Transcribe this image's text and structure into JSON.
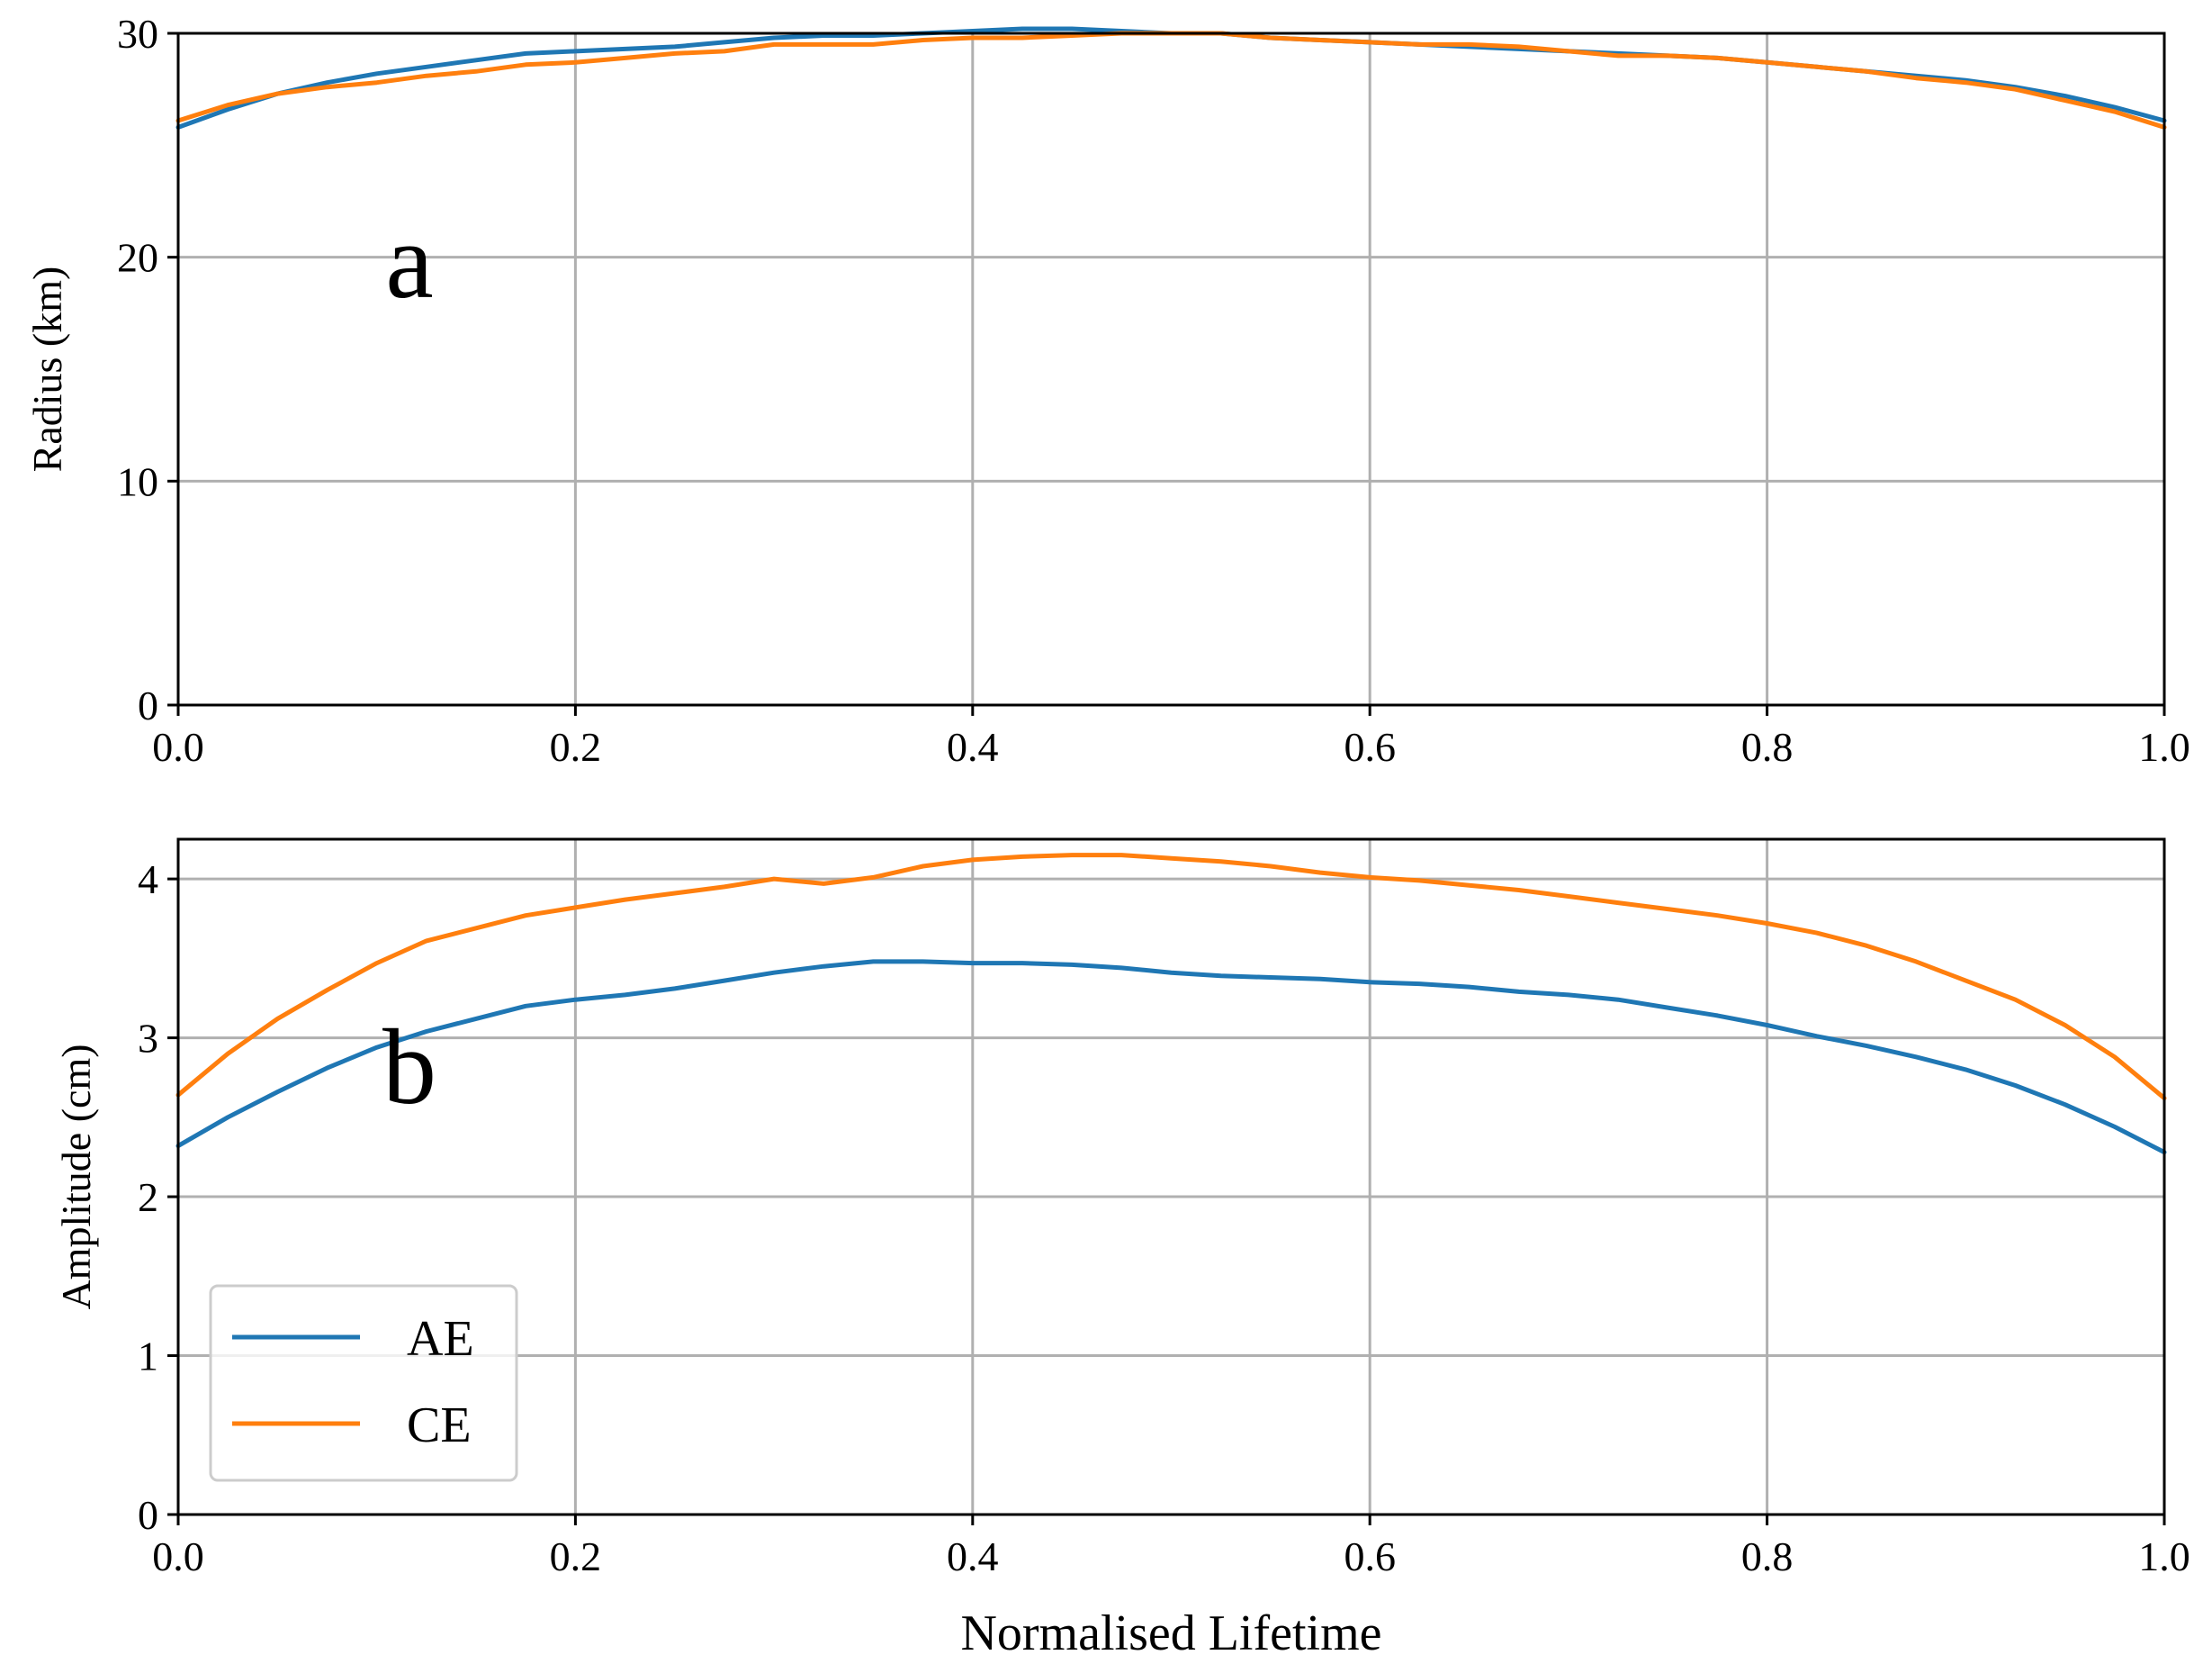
{
  "chart_data": [
    {
      "type": "line",
      "panel_label": "a",
      "title": "",
      "xlabel": "",
      "ylabel": "Radius (km)",
      "xlim": [
        0,
        1
      ],
      "ylim": [
        0,
        30
      ],
      "grid": true,
      "xticks": [
        "0.0",
        "0.2",
        "0.4",
        "0.6",
        "0.8",
        "1.0"
      ],
      "yticks": [
        "0",
        "10",
        "20",
        "30"
      ],
      "x": [
        0.0,
        0.025,
        0.05,
        0.075,
        0.1,
        0.125,
        0.15,
        0.175,
        0.2,
        0.225,
        0.25,
        0.275,
        0.3,
        0.325,
        0.35,
        0.375,
        0.4,
        0.425,
        0.45,
        0.475,
        0.5,
        0.525,
        0.55,
        0.575,
        0.6,
        0.625,
        0.65,
        0.675,
        0.7,
        0.725,
        0.75,
        0.775,
        0.8,
        0.825,
        0.85,
        0.875,
        0.9,
        0.925,
        0.95,
        0.975,
        1.0
      ],
      "series": [
        {
          "name": "AE",
          "color": "#1f77b4",
          "values": [
            25.8,
            26.6,
            27.3,
            27.8,
            28.2,
            28.5,
            28.8,
            29.1,
            29.2,
            29.3,
            29.4,
            29.6,
            29.8,
            29.9,
            29.9,
            30.0,
            30.1,
            30.2,
            30.2,
            30.1,
            30.0,
            30.0,
            29.8,
            29.7,
            29.6,
            29.5,
            29.4,
            29.3,
            29.2,
            29.1,
            29.0,
            28.9,
            28.7,
            28.5,
            28.3,
            28.1,
            27.9,
            27.6,
            27.2,
            26.7,
            26.1
          ]
        },
        {
          "name": "CE",
          "color": "#ff7f0e",
          "values": [
            26.1,
            26.8,
            27.3,
            27.6,
            27.8,
            28.1,
            28.3,
            28.6,
            28.7,
            28.9,
            29.1,
            29.2,
            29.5,
            29.5,
            29.5,
            29.7,
            29.8,
            29.8,
            29.9,
            30.0,
            30.0,
            30.0,
            29.8,
            29.7,
            29.6,
            29.5,
            29.5,
            29.4,
            29.2,
            29.0,
            29.0,
            28.9,
            28.7,
            28.5,
            28.3,
            28.0,
            27.8,
            27.5,
            27.0,
            26.5,
            25.8
          ]
        }
      ]
    },
    {
      "type": "line",
      "panel_label": "b",
      "title": "",
      "xlabel": "Normalised Lifetime",
      "ylabel": "Amplitude (cm)",
      "xlim": [
        0,
        1
      ],
      "ylim": [
        0,
        4.25
      ],
      "grid": true,
      "legend": "lower-left",
      "xticks": [
        "0.0",
        "0.2",
        "0.4",
        "0.6",
        "0.8",
        "1.0"
      ],
      "yticks": [
        "0",
        "1",
        "2",
        "3",
        "4"
      ],
      "x": [
        0.0,
        0.025,
        0.05,
        0.075,
        0.1,
        0.125,
        0.15,
        0.175,
        0.2,
        0.225,
        0.25,
        0.275,
        0.3,
        0.325,
        0.35,
        0.375,
        0.4,
        0.425,
        0.45,
        0.475,
        0.5,
        0.525,
        0.55,
        0.575,
        0.6,
        0.625,
        0.65,
        0.675,
        0.7,
        0.725,
        0.75,
        0.775,
        0.8,
        0.825,
        0.85,
        0.875,
        0.9,
        0.925,
        0.95,
        0.975,
        1.0
      ],
      "series": [
        {
          "name": "AE",
          "color": "#1f77b4",
          "values": [
            2.32,
            2.5,
            2.66,
            2.81,
            2.94,
            3.04,
            3.12,
            3.2,
            3.24,
            3.27,
            3.31,
            3.36,
            3.41,
            3.45,
            3.48,
            3.48,
            3.47,
            3.47,
            3.46,
            3.44,
            3.41,
            3.39,
            3.38,
            3.37,
            3.35,
            3.34,
            3.32,
            3.29,
            3.27,
            3.24,
            3.19,
            3.14,
            3.08,
            3.01,
            2.95,
            2.88,
            2.8,
            2.7,
            2.58,
            2.44,
            2.28
          ]
        },
        {
          "name": "CE",
          "color": "#ff7f0e",
          "values": [
            2.64,
            2.9,
            3.12,
            3.3,
            3.47,
            3.61,
            3.69,
            3.77,
            3.82,
            3.87,
            3.91,
            3.95,
            4.0,
            3.97,
            4.01,
            4.08,
            4.12,
            4.14,
            4.15,
            4.15,
            4.13,
            4.11,
            4.08,
            4.04,
            4.01,
            3.99,
            3.96,
            3.93,
            3.89,
            3.85,
            3.81,
            3.77,
            3.72,
            3.66,
            3.58,
            3.48,
            3.36,
            3.24,
            3.08,
            2.88,
            2.62
          ]
        }
      ]
    }
  ]
}
